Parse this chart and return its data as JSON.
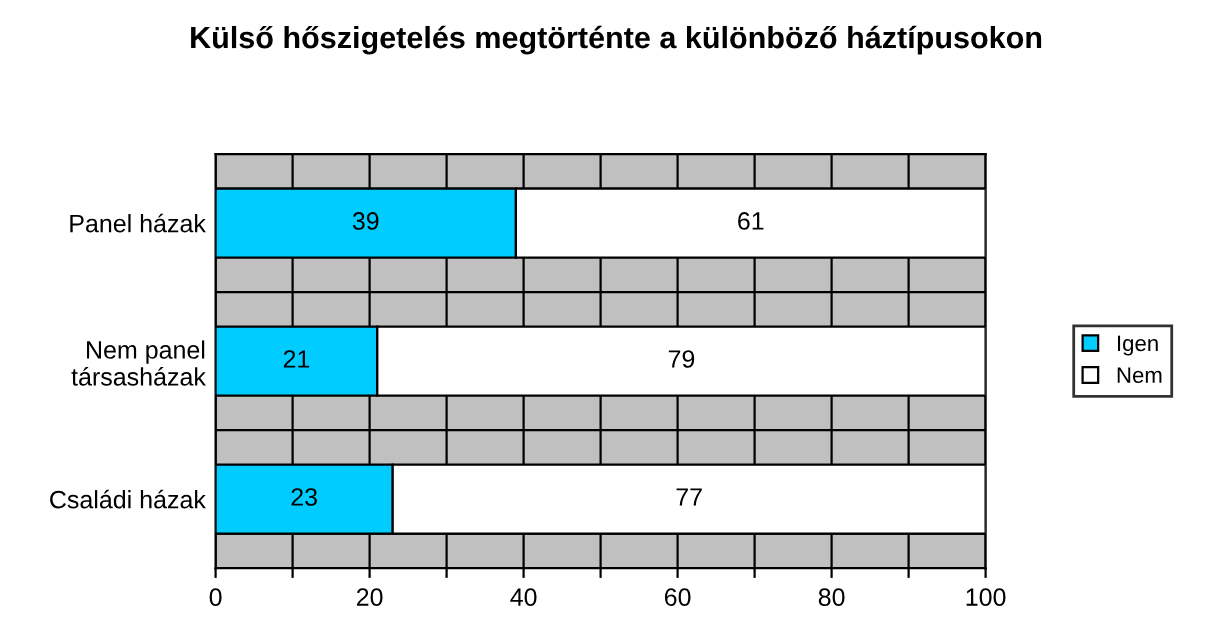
{
  "chart_data": {
    "type": "bar",
    "orientation": "horizontal",
    "stacked": true,
    "title": "Külső hőszigetelés megtörténte a különböző háztípusokon",
    "categories": [
      "Panel házak",
      "Nem panel\ntársasházak",
      "Családi házak"
    ],
    "series": [
      {
        "name": "Igen",
        "color": "#00ccff",
        "values": [
          39,
          21,
          23
        ]
      },
      {
        "name": "Nem",
        "color": "#ffffff",
        "values": [
          61,
          79,
          77
        ]
      }
    ],
    "xlim": [
      0,
      100
    ],
    "xticks": [
      0,
      {
        "value": 10,
        "label": null
      },
      20,
      {
        "value": 30,
        "label": null
      },
      40,
      {
        "value": 50,
        "label": null
      },
      60,
      {
        "value": 70,
        "label": null
      },
      80,
      {
        "value": 90,
        "label": null
      },
      100
    ],
    "grid": "x",
    "legend": "right",
    "data_labels": true
  }
}
